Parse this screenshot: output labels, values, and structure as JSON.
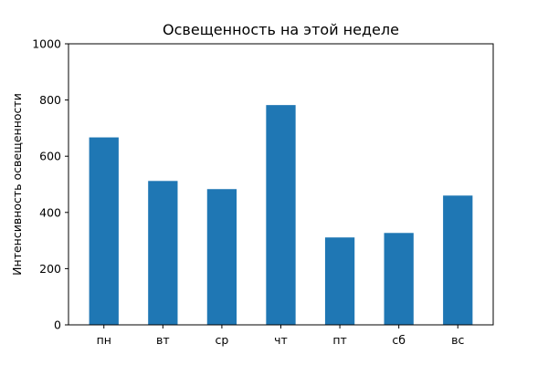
{
  "chart_data": {
    "type": "bar",
    "title": "Освещенность на этой неделе",
    "xlabel": "",
    "ylabel": "Интенсивность освещенности",
    "categories": [
      "пн",
      "вт",
      "ср",
      "чт",
      "пт",
      "сб",
      "вс"
    ],
    "values": [
      667,
      512,
      483,
      782,
      311,
      327,
      460
    ],
    "ylim": [
      0,
      1000
    ],
    "yticks": [
      0,
      200,
      400,
      600,
      800,
      1000
    ],
    "bar_color": "#1f77b4",
    "grid": false
  }
}
